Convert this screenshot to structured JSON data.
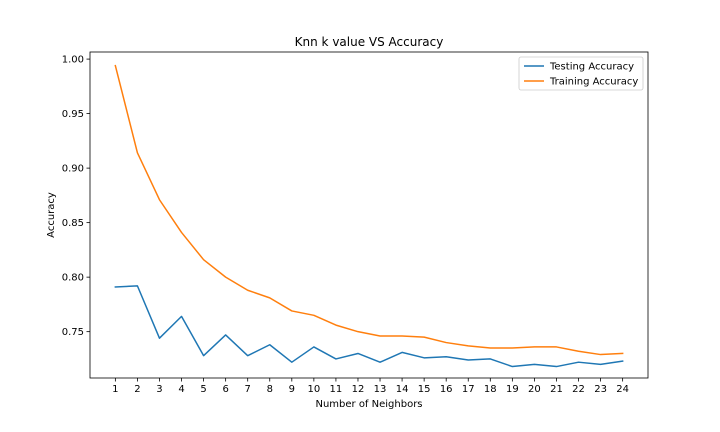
{
  "chart_data": {
    "type": "line",
    "title": "Knn k value VS Accuracy",
    "xlabel": "Number of Neighbors",
    "ylabel": "Accuracy",
    "x": [
      1,
      2,
      3,
      4,
      5,
      6,
      7,
      8,
      9,
      10,
      11,
      12,
      13,
      14,
      15,
      16,
      17,
      18,
      19,
      20,
      21,
      22,
      23,
      24
    ],
    "xlim": [
      -0.15,
      25.15
    ],
    "ylim": [
      0.7075,
      1.0065
    ],
    "yticks": [
      0.75,
      0.8,
      0.85,
      0.9,
      0.95,
      1.0
    ],
    "ytick_labels": [
      "0.75",
      "0.80",
      "0.85",
      "0.90",
      "0.95",
      "1.00"
    ],
    "xtick_labels": [
      "1",
      "2",
      "3",
      "4",
      "5",
      "6",
      "7",
      "8",
      "9",
      "10",
      "11",
      "12",
      "13",
      "14",
      "15",
      "16",
      "17",
      "18",
      "19",
      "20",
      "21",
      "22",
      "23",
      "24"
    ],
    "grid": false,
    "legend_position": "upper right",
    "series": [
      {
        "name": "Testing Accuracy",
        "color": "#1f77b4",
        "values": [
          0.791,
          0.792,
          0.744,
          0.764,
          0.728,
          0.747,
          0.728,
          0.738,
          0.722,
          0.736,
          0.725,
          0.73,
          0.722,
          0.731,
          0.726,
          0.727,
          0.724,
          0.725,
          0.718,
          0.72,
          0.718,
          0.722,
          0.72,
          0.723
        ]
      },
      {
        "name": "Training Accuracy",
        "color": "#ff7f0e",
        "values": [
          0.994,
          0.914,
          0.871,
          0.841,
          0.816,
          0.8,
          0.788,
          0.781,
          0.769,
          0.765,
          0.756,
          0.75,
          0.746,
          0.746,
          0.745,
          0.74,
          0.737,
          0.735,
          0.735,
          0.736,
          0.736,
          0.732,
          0.729,
          0.73
        ]
      }
    ]
  }
}
